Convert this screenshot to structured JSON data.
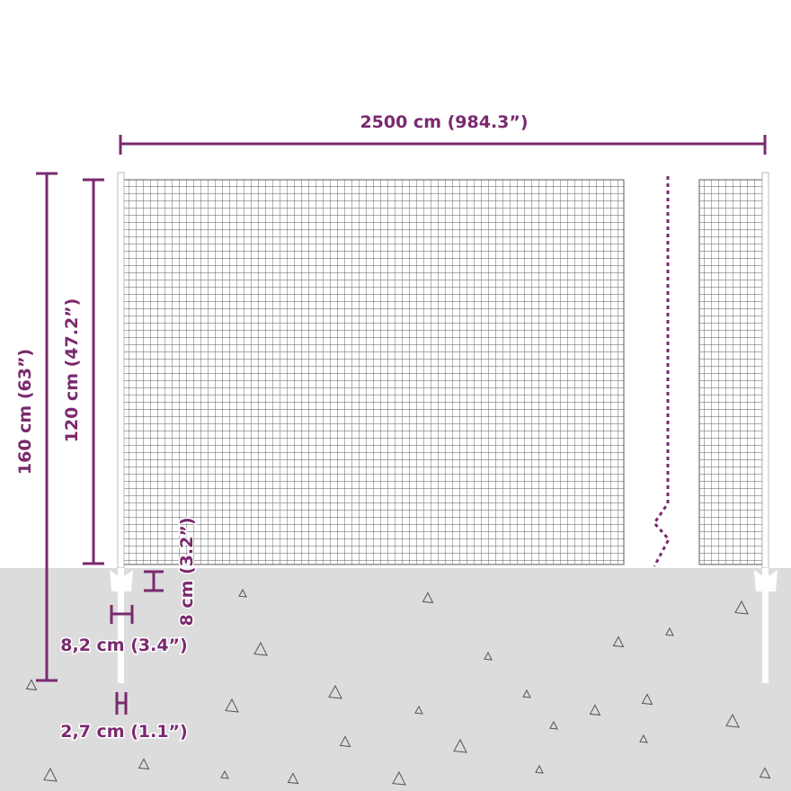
{
  "colors": {
    "accent": "#7a2a6e",
    "ground": "#dcdcdc",
    "mesh": "#555555"
  },
  "dimensions": {
    "length": "2500 cm (984.3”)",
    "total_height": "160 cm (63”)",
    "mesh_height": "120 cm (47.2”)",
    "post_gap": "8 cm (3.2”)",
    "post_width": "8,2 cm (3.4”)",
    "post_thickness": "2,7 cm (1.1”)"
  }
}
